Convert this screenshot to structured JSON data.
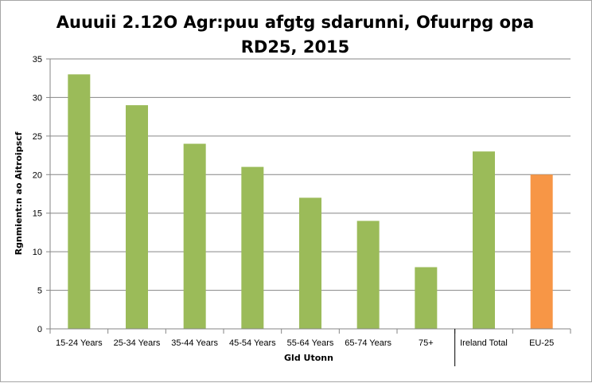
{
  "chart_data": {
    "type": "bar",
    "title": "Auuuii 2.12O Agr:puu afgtg sdarunni, Ofuurpg opa RD25, 2015",
    "xlabel": "Gld Utonn",
    "ylabel": "Rgnmient:n ao Aitroipscf",
    "categories": [
      "15-24 Years",
      "25-34 Years",
      "35-44 Years",
      "45-54 Years",
      "55-64 Years",
      "65-74 Years",
      "75+",
      "Ireland Total",
      "EU-25"
    ],
    "values": [
      33,
      29,
      24,
      21,
      17,
      14,
      8,
      23,
      20
    ],
    "bar_colors": [
      "#9bbb59",
      "#9bbb59",
      "#9bbb59",
      "#9bbb59",
      "#9bbb59",
      "#9bbb59",
      "#9bbb59",
      "#9bbb59",
      "#f79646"
    ],
    "ylim": [
      0,
      35
    ],
    "yticks": [
      0,
      5,
      10,
      15,
      20,
      25,
      30,
      35
    ],
    "grid": true,
    "separator_before_category": "Ireland Total",
    "colors": {
      "gridline": "#868686",
      "axis": "#868686",
      "separator": "#000000"
    }
  }
}
